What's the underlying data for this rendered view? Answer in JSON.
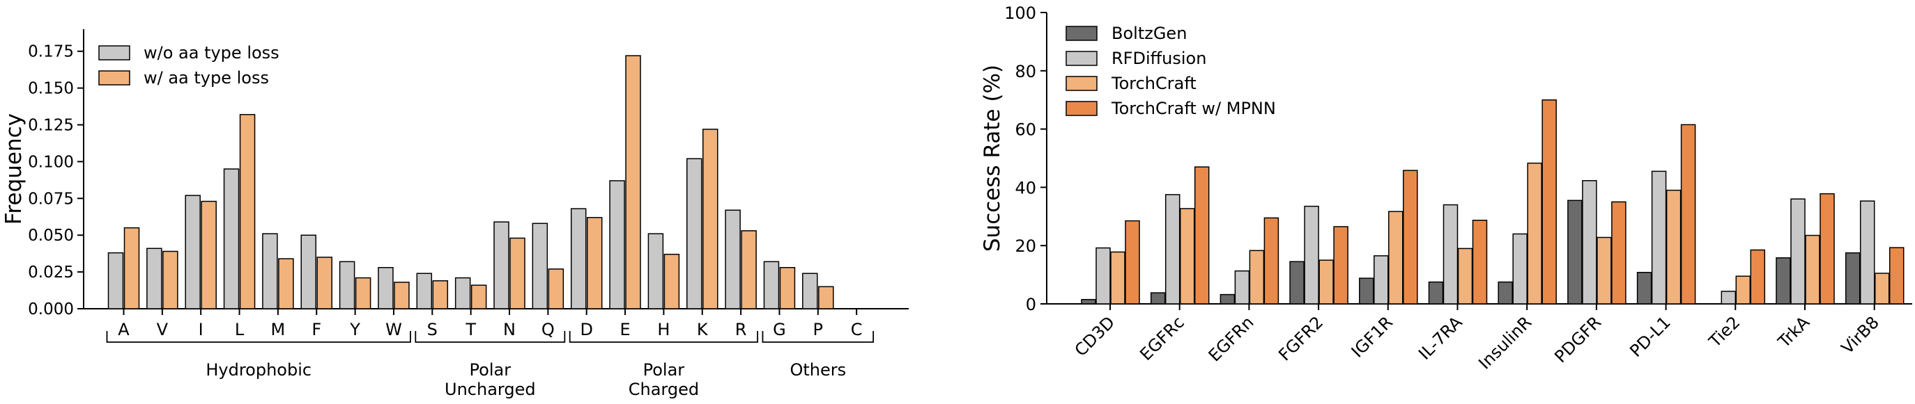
{
  "chart_data": [
    {
      "type": "bar",
      "ylabel": "Frequency",
      "xlabel": "",
      "ylim": [
        0,
        0.19
      ],
      "yticks": [
        "0.000",
        "0.025",
        "0.050",
        "0.075",
        "0.100",
        "0.125",
        "0.150",
        "0.175"
      ],
      "categories": [
        "A",
        "V",
        "I",
        "L",
        "M",
        "F",
        "Y",
        "W",
        "S",
        "T",
        "N",
        "Q",
        "D",
        "E",
        "H",
        "K",
        "R",
        "G",
        "P",
        "C"
      ],
      "series": [
        {
          "name": "w/o aa type loss",
          "color": "#c8c8c8",
          "values": [
            0.038,
            0.041,
            0.077,
            0.095,
            0.051,
            0.05,
            0.032,
            0.028,
            0.024,
            0.021,
            0.059,
            0.058,
            0.068,
            0.087,
            0.051,
            0.102,
            0.067,
            0.032,
            0.024,
            0.0
          ]
        },
        {
          "name": "w/ aa type loss",
          "color": "#f2b27c",
          "values": [
            0.055,
            0.039,
            0.073,
            0.132,
            0.034,
            0.035,
            0.021,
            0.018,
            0.019,
            0.016,
            0.048,
            0.027,
            0.062,
            0.172,
            0.037,
            0.122,
            0.053,
            0.028,
            0.015,
            0.0
          ]
        }
      ],
      "groups": [
        {
          "label": "Hydrophobic",
          "members": [
            "A",
            "V",
            "I",
            "L",
            "M",
            "F",
            "Y",
            "W"
          ]
        },
        {
          "label": "Polar Uncharged",
          "members": [
            "S",
            "T",
            "N",
            "Q"
          ]
        },
        {
          "label": "Polar Charged",
          "members": [
            "D",
            "E",
            "H",
            "K",
            "R"
          ]
        },
        {
          "label": "Others",
          "members": [
            "G",
            "P",
            "C"
          ]
        }
      ],
      "legend_position": "top-left",
      "grid": false
    },
    {
      "type": "bar",
      "ylabel": "Success Rate (%)",
      "xlabel": "",
      "ylim": [
        0,
        100
      ],
      "yticks": [
        "0",
        "20",
        "40",
        "60",
        "80",
        "100"
      ],
      "categories": [
        "CD3D",
        "EGFRc",
        "EGFRn",
        "FGFR2",
        "IGF1R",
        "IL-7RA",
        "InsulinR",
        "PDGFR",
        "PD-L1",
        "Tie2",
        "TrkA",
        "VirB8"
      ],
      "series": [
        {
          "name": "BoltzGen",
          "color": "#6b6b6b",
          "values": [
            1.5,
            3.8,
            3.2,
            14.5,
            8.8,
            7.5,
            7.5,
            35.5,
            10.8,
            0.0,
            15.8,
            17.5
          ]
        },
        {
          "name": "RFDiffusion",
          "color": "#c8c8c8",
          "values": [
            19.2,
            37.5,
            11.3,
            33.5,
            16.5,
            34.0,
            24.0,
            42.3,
            45.5,
            4.3,
            36.0,
            35.3
          ]
        },
        {
          "name": "TorchCraft",
          "color": "#f2b27c",
          "values": [
            17.8,
            32.7,
            18.3,
            15.0,
            31.7,
            19.0,
            48.3,
            22.8,
            39.0,
            9.5,
            23.5,
            10.5
          ]
        },
        {
          "name": "TorchCraft w/ MPNN",
          "color": "#e98a4a",
          "values": [
            28.5,
            47.0,
            29.5,
            26.5,
            45.8,
            28.7,
            70.0,
            35.0,
            61.5,
            18.5,
            37.8,
            19.3
          ]
        }
      ],
      "legend_position": "top-left",
      "grid": false
    }
  ]
}
